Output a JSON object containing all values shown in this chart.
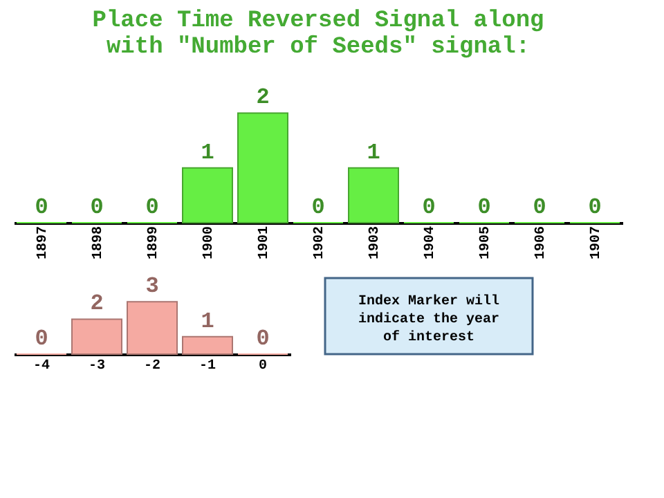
{
  "chart_data": [
    {
      "type": "bar",
      "title": "Place Time Reversed Signal along with \"Number of Seeds\" signal:",
      "categories": [
        "1897",
        "1898",
        "1899",
        "1900",
        "1901",
        "1902",
        "1903",
        "1904",
        "1905",
        "1906",
        "1907"
      ],
      "values": [
        0,
        0,
        0,
        1,
        2,
        0,
        1,
        0,
        0,
        0,
        0
      ],
      "color": "#66ee44",
      "data_labels": true
    },
    {
      "type": "bar",
      "categories": [
        "-4",
        "-3",
        "-2",
        "-1",
        "0"
      ],
      "values": [
        0,
        2,
        3,
        1,
        0
      ],
      "color": "#f5aaa2",
      "data_labels": true,
      "annotations": [
        "Index Marker will indicate the year of interest"
      ]
    }
  ]
}
